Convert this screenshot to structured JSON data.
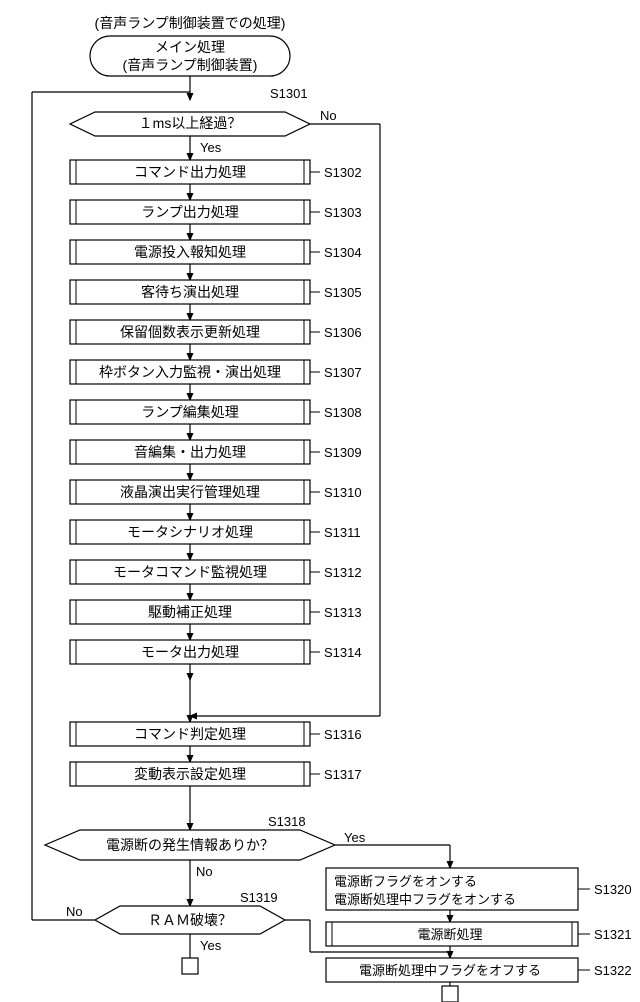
{
  "title_outer": "(音声ランプ制御装置での処理)",
  "title_main": "メイン処理",
  "title_sub": "(音声ランプ制御装置)",
  "decision1": {
    "label": "１ms以上経過？",
    "tag": "S1301",
    "yes": "Yes",
    "no": "No"
  },
  "steps": [
    {
      "label": "コマンド出力処理",
      "tag": "S1302"
    },
    {
      "label": "ランプ出力処理",
      "tag": "S1303"
    },
    {
      "label": "電源投入報知処理",
      "tag": "S1304"
    },
    {
      "label": "客待ち演出処理",
      "tag": "S1305"
    },
    {
      "label": "保留個数表示更新処理",
      "tag": "S1306"
    },
    {
      "label": "枠ボタン入力監視・演出処理",
      "tag": "S1307"
    },
    {
      "label": "ランプ編集処理",
      "tag": "S1308"
    },
    {
      "label": "音編集・出力処理",
      "tag": "S1309"
    },
    {
      "label": "液晶演出実行管理処理",
      "tag": "S1310"
    },
    {
      "label": "モータシナリオ処理",
      "tag": "S1311"
    },
    {
      "label": "モータコマンド監視処理",
      "tag": "S1312"
    },
    {
      "label": "駆動補正処理",
      "tag": "S1313"
    },
    {
      "label": "モータ出力処理",
      "tag": "S1314"
    }
  ],
  "steps2": [
    {
      "label": "コマンド判定処理",
      "tag": "S1316"
    },
    {
      "label": "変動表示設定処理",
      "tag": "S1317"
    }
  ],
  "decision2": {
    "label": "電源断の発生情報ありか？",
    "tag": "S1318",
    "yes": "Yes",
    "no": "No"
  },
  "decision3": {
    "label": "ＲＡＭ破壊？",
    "tag": "S1319",
    "yes": "Yes",
    "no": "No"
  },
  "right_steps": [
    {
      "line1": "電源断フラグをオンする",
      "line2": "電源断処理中フラグをオンする",
      "tag": "S1320"
    },
    {
      "label": "電源断処理",
      "tag": "S1321"
    },
    {
      "label": "電源断処理中フラグをオフする",
      "tag": "S1322"
    }
  ],
  "colors": {
    "stroke": "#000",
    "fill": "#fff",
    "text": "#000"
  },
  "stroke_width": 1.2
}
